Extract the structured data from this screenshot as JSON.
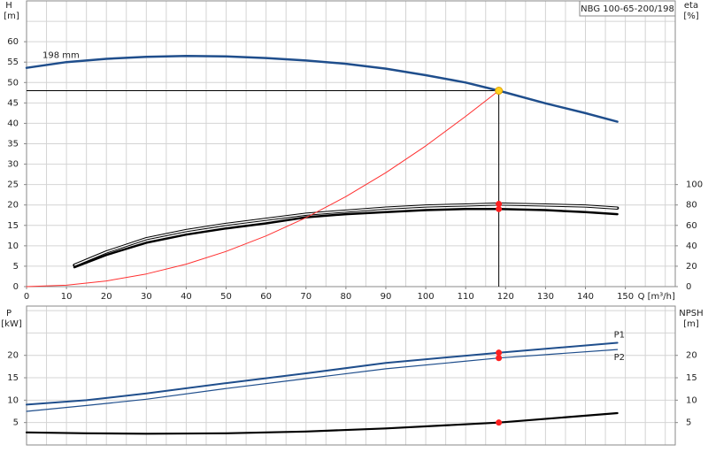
{
  "chart_data": [
    {
      "type": "line",
      "title": "NBG 100-65-200/198",
      "x_label": "Q [m³/h]",
      "y_label": "H",
      "y_unit": "[m]",
      "y2_label": "eta",
      "y2_unit": "[%]",
      "xlim": [
        0,
        162.5
      ],
      "ylim": [
        0,
        70
      ],
      "y2lim": [
        0,
        280
      ],
      "xticks": [
        0,
        10,
        20,
        30,
        40,
        50,
        60,
        70,
        80,
        90,
        100,
        110,
        120,
        130,
        140,
        150
      ],
      "yticks": [
        0,
        5,
        10,
        15,
        20,
        25,
        30,
        35,
        40,
        45,
        50,
        55,
        60
      ],
      "y2ticks": [
        0,
        20,
        40,
        60,
        80,
        100
      ],
      "xgrid": [
        0,
        5,
        10,
        15,
        20,
        25,
        30,
        35,
        40,
        45,
        50,
        55,
        60,
        65,
        70,
        75,
        80,
        85,
        90,
        95,
        100,
        105,
        110,
        115,
        120,
        125,
        130,
        135,
        140,
        145,
        150,
        155,
        160
      ],
      "ygrid": [
        0,
        5,
        10,
        15,
        20,
        25,
        30,
        35,
        40,
        45,
        50,
        55,
        60,
        65
      ],
      "series": [
        {
          "name": "198 mm",
          "color": "#1f4e8c",
          "width": 2.5,
          "x": [
            0,
            10,
            20,
            30,
            40,
            50,
            60,
            70,
            80,
            90,
            100,
            110,
            118.3,
            130,
            140,
            148
          ],
          "values": [
            53.6,
            55,
            55.8,
            56.3,
            56.5,
            56.4,
            56,
            55.4,
            54.6,
            53.4,
            51.8,
            50,
            48,
            44.9,
            42.5,
            40.4
          ]
        },
        {
          "color": "#000000",
          "width": 3.5,
          "outline": true,
          "axis": "y2",
          "x": [
            12,
            20,
            30,
            40,
            50,
            60,
            70,
            80,
            90,
            100,
            110,
            118.3,
            130,
            140,
            148
          ],
          "values": [
            21,
            34,
            47,
            55,
            61,
            66,
            71,
            74,
            77,
            79,
            80,
            81,
            80,
            79,
            77
          ]
        },
        {
          "color": "#000000",
          "width": 2.5,
          "axis": "y2",
          "x": [
            12,
            20,
            30,
            40,
            50,
            60,
            70,
            80,
            90,
            100,
            110,
            118.3,
            130,
            140,
            148
          ],
          "values": [
            19,
            31,
            43,
            51,
            57,
            62,
            68,
            71,
            73,
            75,
            76,
            76,
            75,
            73,
            71
          ]
        },
        {
          "color": "#ff3030",
          "width": 1,
          "x": [
            0,
            10,
            20,
            30,
            40,
            50,
            60,
            70,
            80,
            90,
            100,
            110,
            118.3
          ],
          "values": [
            0,
            0.34,
            1.38,
            3.1,
            5.51,
            8.62,
            12.41,
            16.89,
            22.06,
            27.92,
            34.47,
            41.71,
            48
          ]
        }
      ],
      "duty_point": {
        "x": 118.3,
        "value": 48,
        "color": "#ffd21f"
      },
      "markers": [
        {
          "x": 118.3,
          "value": 81,
          "axis": "y2",
          "color": "#ff2020"
        },
        {
          "x": 118.3,
          "value": 76,
          "axis": "y2",
          "color": "#ff2020"
        }
      ]
    },
    {
      "type": "line",
      "y_label": "P",
      "y_unit": "[kW]",
      "y2_label": "NPSH",
      "y2_unit": "[m]",
      "xlim": [
        0,
        162.5
      ],
      "ylim": [
        0,
        31
      ],
      "y2lim": [
        0,
        31
      ],
      "yticks": [
        5,
        10,
        15,
        20
      ],
      "y2ticks": [
        5,
        10,
        15,
        20
      ],
      "xgrid": [
        0,
        5,
        10,
        15,
        20,
        25,
        30,
        35,
        40,
        45,
        50,
        55,
        60,
        65,
        70,
        75,
        80,
        85,
        90,
        95,
        100,
        105,
        110,
        115,
        120,
        125,
        130,
        135,
        140,
        145,
        150,
        155,
        160
      ],
      "ygrid": [
        0,
        5,
        10,
        15,
        20,
        25,
        30
      ],
      "series": [
        {
          "name": "P1",
          "color": "#1f4e8c",
          "width": 2,
          "x": [
            0,
            15,
            30,
            50,
            70,
            90,
            118.3,
            148
          ],
          "values": [
            9,
            10,
            11.5,
            13.8,
            16,
            18.3,
            20.6,
            22.8
          ]
        },
        {
          "name": "P2",
          "color": "#1f4e8c",
          "width": 1.2,
          "x": [
            0,
            15,
            30,
            50,
            70,
            90,
            118.3,
            148
          ],
          "values": [
            7.5,
            8.8,
            10.2,
            12.6,
            14.8,
            17,
            19.4,
            21.3
          ]
        },
        {
          "color": "#000000",
          "width": 2.2,
          "axis": "y2",
          "x": [
            0,
            15,
            30,
            50,
            70,
            90,
            118.3,
            148
          ],
          "values": [
            2.8,
            2.6,
            2.5,
            2.6,
            3,
            3.7,
            5,
            7.1
          ]
        }
      ],
      "markers": [
        {
          "x": 118.3,
          "value": 20.6,
          "color": "#ff2020"
        },
        {
          "x": 118.3,
          "value": 19.4,
          "color": "#ff2020"
        },
        {
          "x": 118.3,
          "value": 5,
          "axis": "y2",
          "color": "#ff2020"
        }
      ]
    }
  ]
}
